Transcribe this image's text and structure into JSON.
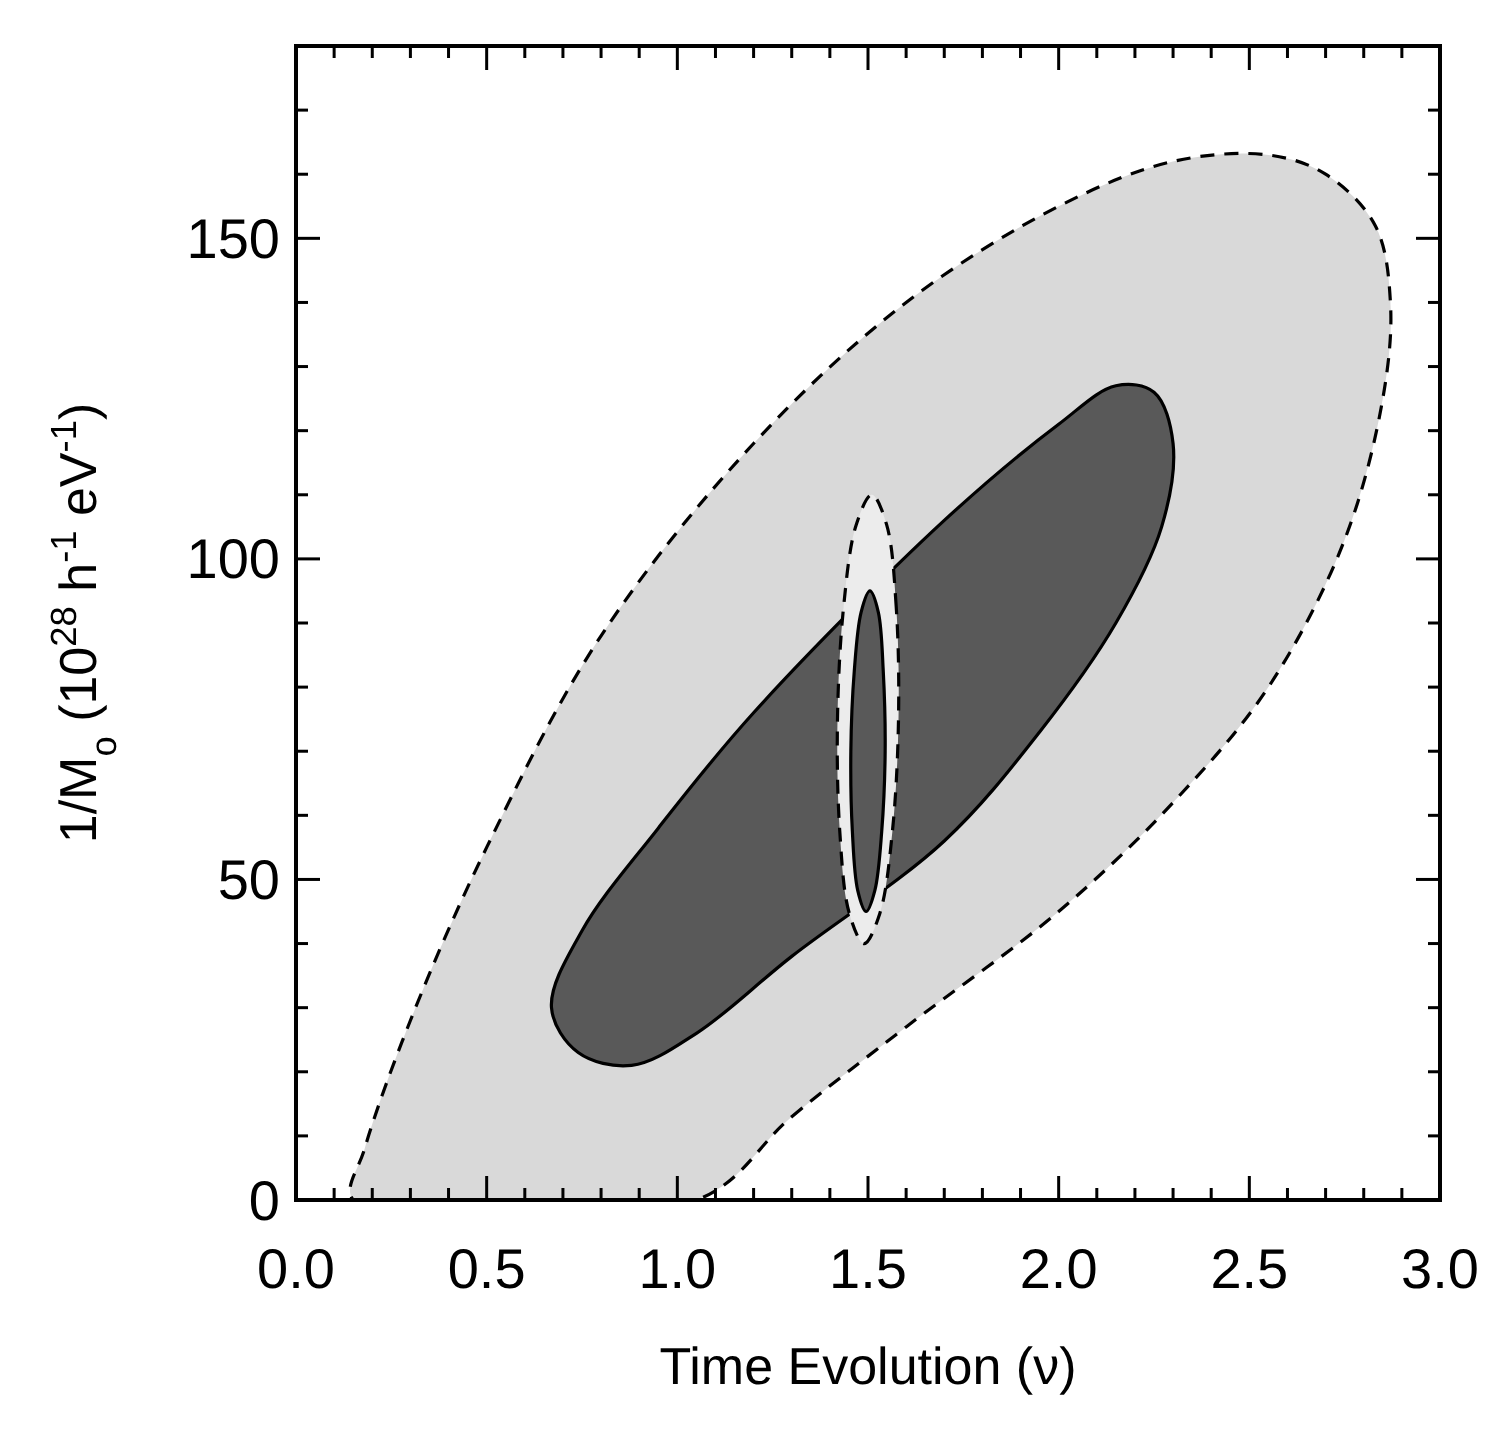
{
  "chart_data": {
    "type": "area",
    "xlabel": "Time Evolution (ν)",
    "ylabel": "1/M$_{o}$ (10$^{28}$ h$^{-1}$ eV$^{-1}$)",
    "xlim": [
      0,
      3
    ],
    "ylim": [
      0,
      180
    ],
    "xticks": [
      {
        "value": 0,
        "label": "0.0"
      },
      {
        "value": 0.1,
        "label": null
      },
      {
        "value": 0.2,
        "label": null
      },
      {
        "value": 0.3,
        "label": null
      },
      {
        "value": 0.4,
        "label": null
      },
      {
        "value": 0.5,
        "label": "0.5"
      },
      {
        "value": 0.6,
        "label": null
      },
      {
        "value": 0.7,
        "label": null
      },
      {
        "value": 0.8,
        "label": null
      },
      {
        "value": 0.9,
        "label": null
      },
      {
        "value": 1,
        "label": "1.0"
      },
      {
        "value": 1.1,
        "label": null
      },
      {
        "value": 1.2,
        "label": null
      },
      {
        "value": 1.3,
        "label": null
      },
      {
        "value": 1.4,
        "label": null
      },
      {
        "value": 1.5,
        "label": "1.5"
      },
      {
        "value": 1.6,
        "label": null
      },
      {
        "value": 1.7,
        "label": null
      },
      {
        "value": 1.8,
        "label": null
      },
      {
        "value": 1.9,
        "label": null
      },
      {
        "value": 2,
        "label": "2.0"
      },
      {
        "value": 2.1,
        "label": null
      },
      {
        "value": 2.2,
        "label": null
      },
      {
        "value": 2.3,
        "label": null
      },
      {
        "value": 2.4,
        "label": null
      },
      {
        "value": 2.5,
        "label": "2.5"
      },
      {
        "value": 2.6,
        "label": null
      },
      {
        "value": 2.7,
        "label": null
      },
      {
        "value": 2.8,
        "label": null
      },
      {
        "value": 2.9,
        "label": null
      },
      {
        "value": 3,
        "label": "3.0"
      }
    ],
    "yticks": [
      0,
      {
        "value": 10,
        "label": null
      },
      {
        "value": 20,
        "label": null
      },
      {
        "value": 30,
        "label": null
      },
      {
        "value": 40,
        "label": null
      },
      50,
      {
        "value": 60,
        "label": null
      },
      {
        "value": 70,
        "label": null
      },
      {
        "value": 80,
        "label": null
      },
      {
        "value": 90,
        "label": null
      },
      100,
      {
        "value": 110,
        "label": null
      },
      {
        "value": 120,
        "label": null
      },
      {
        "value": 130,
        "label": null
      },
      {
        "value": 140,
        "label": null
      },
      150,
      {
        "value": 160,
        "label": null
      },
      {
        "value": 170,
        "label": null
      },
      {
        "value": 180,
        "label": null
      }
    ],
    "grid": false,
    "series": [
      {
        "color": "#d9d9d9",
        "line_style": "dashed",
        "x": [
          1.05,
          1.3,
          1.6,
          2.0,
          2.3,
          2.55,
          2.75,
          2.85,
          2.87,
          2.83,
          2.7,
          2.55,
          2.3,
          2.0,
          1.6,
          1.2,
          0.8,
          0.5,
          0.3,
          0.18,
          0.15
        ],
        "values": [
          0,
          13,
          27,
          45,
          62,
          80,
          103,
          125,
          140,
          152,
          160,
          163,
          162,
          155,
          140,
          118,
          88,
          55,
          28,
          8,
          0
        ]
      },
      {
        "color": "#595959",
        "line_style": "solid",
        "x": [
          0.67,
          0.75,
          0.95,
          1.2,
          1.7,
          2.0,
          2.15,
          2.25,
          2.3,
          2.27,
          2.15,
          1.95,
          1.7,
          1.3,
          1.05,
          0.88,
          0.74
        ],
        "values": [
          30,
          42,
          58,
          76,
          106,
          121,
          127,
          126,
          118,
          105,
          90,
          73,
          56,
          38,
          26,
          21,
          23
        ]
      },
      {
        "color": "#ececec",
        "line_style": "dashed",
        "x": [
          1.58,
          1.574,
          1.549,
          1.51,
          1.469,
          1.436,
          1.42,
          1.426,
          1.451,
          1.49,
          1.531,
          1.564
        ],
        "values": [
          75,
          92.5,
          105.3,
          110,
          105.3,
          92.5,
          75,
          57.5,
          44.7,
          40,
          44.7,
          57.5
        ]
      },
      {
        "color": "#595959",
        "line_style": "solid",
        "x": [
          1.545,
          1.54,
          1.527,
          1.505,
          1.482,
          1.464,
          1.455,
          1.459,
          1.473,
          1.495,
          1.518,
          1.536
        ],
        "values": [
          70,
          82.5,
          91.7,
          95,
          91.7,
          82.5,
          70,
          57.5,
          48.3,
          45,
          48.3,
          57.5
        ]
      }
    ]
  }
}
